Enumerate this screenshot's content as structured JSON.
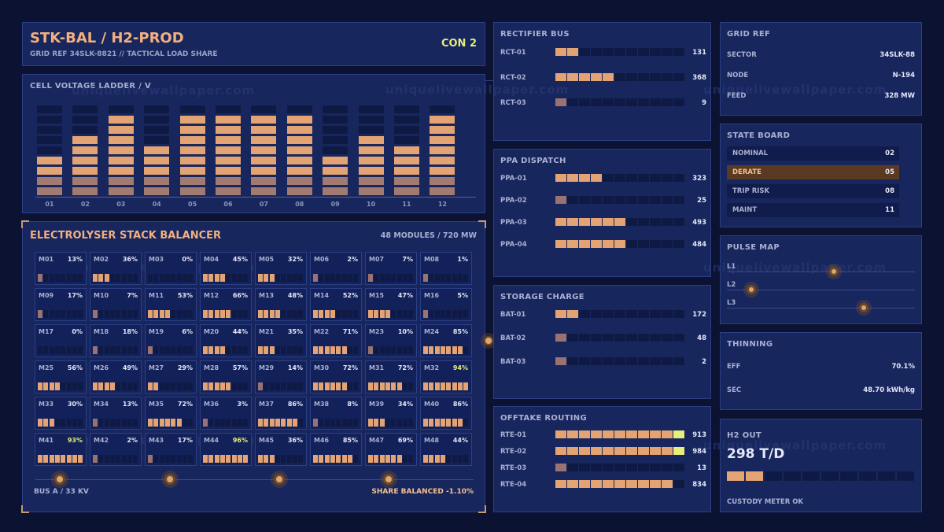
{
  "header": {
    "title": "STK-BAL / H2-PROD",
    "subtitle": "GRID REF 34SLK-8821 // TACTICAL LOAD SHARE",
    "condition": "CON 2"
  },
  "watermark": "uniquelivewallpaper.com",
  "ladder": {
    "label": "CELL VOLTAGE LADDER / V",
    "segments_total": 9,
    "columns": [
      {
        "label": "01",
        "lit": 4
      },
      {
        "label": "02",
        "lit": 6
      },
      {
        "label": "03",
        "lit": 8
      },
      {
        "label": "04",
        "lit": 5
      },
      {
        "label": "05",
        "lit": 8
      },
      {
        "label": "06",
        "lit": 8
      },
      {
        "label": "07",
        "lit": 8
      },
      {
        "label": "08",
        "lit": 8
      },
      {
        "label": "09",
        "lit": 4
      },
      {
        "label": "10",
        "lit": 6
      },
      {
        "label": "11",
        "lit": 5
      },
      {
        "label": "12",
        "lit": 8
      }
    ]
  },
  "balancer": {
    "title": "ELECTROLYSER STACK BALANCER",
    "summary": "48 MODULES / 720 MW",
    "modules": [
      {
        "id": "M01",
        "pct": "13%",
        "lit": 1
      },
      {
        "id": "M02",
        "pct": "36%",
        "lit": 3
      },
      {
        "id": "M03",
        "pct": "0%",
        "lit": 0
      },
      {
        "id": "M04",
        "pct": "45%",
        "lit": 4
      },
      {
        "id": "M05",
        "pct": "32%",
        "lit": 3
      },
      {
        "id": "M06",
        "pct": "2%",
        "lit": 1
      },
      {
        "id": "M07",
        "pct": "7%",
        "lit": 1
      },
      {
        "id": "M08",
        "pct": "1%",
        "lit": 1
      },
      {
        "id": "M09",
        "pct": "17%",
        "lit": 1
      },
      {
        "id": "M10",
        "pct": "7%",
        "lit": 1
      },
      {
        "id": "M11",
        "pct": "53%",
        "lit": 4
      },
      {
        "id": "M12",
        "pct": "66%",
        "lit": 5
      },
      {
        "id": "M13",
        "pct": "48%",
        "lit": 4
      },
      {
        "id": "M14",
        "pct": "52%",
        "lit": 4
      },
      {
        "id": "M15",
        "pct": "47%",
        "lit": 4
      },
      {
        "id": "M16",
        "pct": "5%",
        "lit": 1
      },
      {
        "id": "M17",
        "pct": "0%",
        "lit": 0
      },
      {
        "id": "M18",
        "pct": "18%",
        "lit": 1
      },
      {
        "id": "M19",
        "pct": "6%",
        "lit": 1
      },
      {
        "id": "M20",
        "pct": "44%",
        "lit": 4
      },
      {
        "id": "M21",
        "pct": "35%",
        "lit": 3
      },
      {
        "id": "M22",
        "pct": "71%",
        "lit": 6
      },
      {
        "id": "M23",
        "pct": "10%",
        "lit": 1
      },
      {
        "id": "M24",
        "pct": "85%",
        "lit": 7
      },
      {
        "id": "M25",
        "pct": "56%",
        "lit": 4
      },
      {
        "id": "M26",
        "pct": "49%",
        "lit": 4
      },
      {
        "id": "M27",
        "pct": "29%",
        "lit": 2
      },
      {
        "id": "M28",
        "pct": "57%",
        "lit": 5
      },
      {
        "id": "M29",
        "pct": "14%",
        "lit": 1
      },
      {
        "id": "M30",
        "pct": "72%",
        "lit": 6
      },
      {
        "id": "M31",
        "pct": "72%",
        "lit": 6
      },
      {
        "id": "M32",
        "pct": "94%",
        "lit": 8,
        "hi": true
      },
      {
        "id": "M33",
        "pct": "30%",
        "lit": 3
      },
      {
        "id": "M34",
        "pct": "13%",
        "lit": 1
      },
      {
        "id": "M35",
        "pct": "72%",
        "lit": 6
      },
      {
        "id": "M36",
        "pct": "3%",
        "lit": 1
      },
      {
        "id": "M37",
        "pct": "86%",
        "lit": 7
      },
      {
        "id": "M38",
        "pct": "8%",
        "lit": 1
      },
      {
        "id": "M39",
        "pct": "34%",
        "lit": 3
      },
      {
        "id": "M40",
        "pct": "86%",
        "lit": 7
      },
      {
        "id": "M41",
        "pct": "93%",
        "lit": 8,
        "hi": true
      },
      {
        "id": "M42",
        "pct": "2%",
        "lit": 1
      },
      {
        "id": "M43",
        "pct": "17%",
        "lit": 1
      },
      {
        "id": "M44",
        "pct": "96%",
        "lit": 8,
        "hi": true
      },
      {
        "id": "M45",
        "pct": "36%",
        "lit": 3
      },
      {
        "id": "M46",
        "pct": "85%",
        "lit": 7
      },
      {
        "id": "M47",
        "pct": "69%",
        "lit": 6
      },
      {
        "id": "M48",
        "pct": "44%",
        "lit": 4
      }
    ],
    "bus_label": "BUS A / 33 KV",
    "share_label": "SHARE BALANCED -1.10%"
  },
  "rectifier": {
    "label": "RECTIFIER BUS",
    "rows": [
      {
        "name": "RCT-01",
        "value": "131",
        "lit": 2
      },
      {
        "name": "RCT-02",
        "value": "368",
        "lit": 5
      },
      {
        "name": "RCT-03",
        "value": "9",
        "lit": 1
      }
    ]
  },
  "ppa": {
    "label": "PPA DISPATCH",
    "rows": [
      {
        "name": "PPA-01",
        "value": "323",
        "lit": 4
      },
      {
        "name": "PPA-02",
        "value": "25",
        "lit": 1
      },
      {
        "name": "PPA-03",
        "value": "493",
        "lit": 6
      },
      {
        "name": "PPA-04",
        "value": "484",
        "lit": 6
      }
    ]
  },
  "storage": {
    "label": "STORAGE CHARGE",
    "rows": [
      {
        "name": "BAT-01",
        "value": "172",
        "lit": 2
      },
      {
        "name": "BAT-02",
        "value": "48",
        "lit": 1
      },
      {
        "name": "BAT-03",
        "value": "2",
        "lit": 1
      }
    ]
  },
  "offtake": {
    "label": "OFFTAKE ROUTING",
    "rows": [
      {
        "name": "RTE-01",
        "value": "913",
        "lit": 11,
        "hi": true
      },
      {
        "name": "RTE-02",
        "value": "984",
        "lit": 11,
        "hi": true
      },
      {
        "name": "RTE-03",
        "value": "13",
        "lit": 1
      },
      {
        "name": "RTE-04",
        "value": "834",
        "lit": 10
      }
    ]
  },
  "gridref": {
    "label": "GRID REF",
    "rows": [
      {
        "k": "SECTOR",
        "v": "34SLK-88"
      },
      {
        "k": "NODE",
        "v": "N-194"
      },
      {
        "k": "FEED",
        "v": "328 MW"
      }
    ]
  },
  "state": {
    "label": "STATE BOARD",
    "rows": [
      {
        "k": "NOMINAL",
        "v": "02",
        "active": false
      },
      {
        "k": "DERATE",
        "v": "05",
        "active": true
      },
      {
        "k": "TRIP RISK",
        "v": "08",
        "active": false
      },
      {
        "k": "MAINT",
        "v": "11",
        "active": false
      }
    ]
  },
  "pulse": {
    "label": "PULSE MAP",
    "lines": [
      {
        "name": "L1",
        "level": 0.57
      },
      {
        "name": "L2",
        "level": 0.13
      },
      {
        "name": "L3",
        "level": 0.73
      }
    ]
  },
  "thinning": {
    "label": "THINNING",
    "rows": [
      {
        "k": "EFF",
        "v": "70.1%"
      },
      {
        "k": "SEC",
        "v": "48.70 kWh/kg"
      }
    ]
  },
  "h2out": {
    "label": "H2 OUT",
    "value": "298 T/D",
    "lit": 2,
    "status": "CUSTODY METER OK"
  },
  "colors": {
    "dim": "#0f1a44",
    "lit": "#e3a373",
    "lit_low": "#9a7272",
    "hi": "#e6ee7c",
    "accent": "#f2b07e"
  }
}
